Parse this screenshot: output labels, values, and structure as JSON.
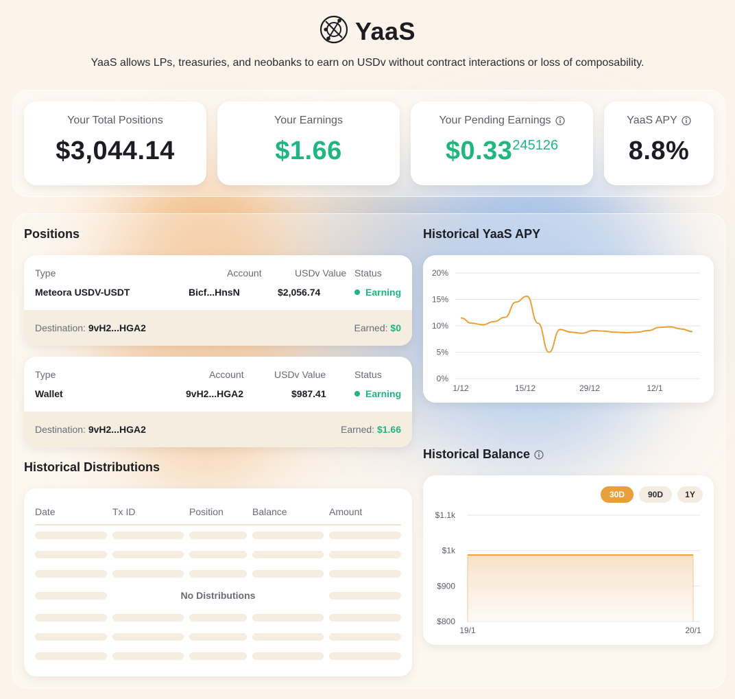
{
  "brand": {
    "title": "YaaS",
    "tagline": "YaaS allows LPs, treasuries, and neobanks to earn on USDv without contract interactions or loss of composability."
  },
  "stats": {
    "total_positions": {
      "label": "Your Total Positions",
      "value": "$3,044.14"
    },
    "earnings": {
      "label": "Your Earnings",
      "value": "$1.66"
    },
    "pending": {
      "label": "Your Pending Earnings",
      "value": "$0.33",
      "ticker": "245126"
    },
    "apy": {
      "label": "YaaS APY",
      "value": "8.8%"
    }
  },
  "positions": {
    "title": "Positions",
    "headers": {
      "type": "Type",
      "account": "Account",
      "usdv_value": "USDv Value",
      "status": "Status"
    },
    "destination_label": "Destination:",
    "earned_label": "Earned:",
    "items": [
      {
        "type": "Meteora USDV-USDT",
        "account": "Bicf...HnsN",
        "usdv_value": "$2,056.74",
        "status": "Earning",
        "destination": "9vH2...HGA2",
        "earned": "$0"
      },
      {
        "type": "Wallet",
        "account": "9vH2...HGA2",
        "usdv_value": "$987.41",
        "status": "Earning",
        "destination": "9vH2...HGA2",
        "earned": "$1.66"
      }
    ]
  },
  "distributions": {
    "title": "Historical Distributions",
    "headers": [
      "Date",
      "Tx ID",
      "Position",
      "Balance",
      "Amount"
    ],
    "empty_text": "No Distributions"
  },
  "apy_chart": {
    "title": "Historical YaaS APY",
    "chart_data": {
      "type": "line",
      "title": "Historical YaaS APY",
      "y_ticks": [
        "20%",
        "15%",
        "10%",
        "5%",
        "0%"
      ],
      "ylim": [
        0,
        20
      ],
      "x_ticks": [
        "1/12",
        "15/12",
        "29/12",
        "12/1"
      ],
      "series": [
        {
          "color": "#e9a03a",
          "values": [
            11.5,
            10.5,
            10.2,
            10.8,
            11.6,
            14.5,
            15.6,
            10.5,
            5.0,
            9.3,
            8.8,
            8.6,
            9.1,
            9.0,
            8.8,
            8.7,
            8.8,
            9.1,
            9.7,
            9.8,
            9.4,
            8.9
          ]
        }
      ],
      "grid": true
    }
  },
  "balance_chart": {
    "title": "Historical Balance",
    "ranges": [
      "30D",
      "90D",
      "1Y"
    ],
    "active_range": "30D",
    "chart_data": {
      "type": "area",
      "title": "Historical Balance",
      "y_ticks": [
        "$1.1k",
        "$1k",
        "$900",
        "$800"
      ],
      "ylim": [
        800,
        1100
      ],
      "x_ticks": [
        "19/1",
        "20/1"
      ],
      "series": [
        {
          "color": "#e9a03a",
          "values": [
            987.41,
            987.41
          ]
        }
      ],
      "grid": true
    }
  }
}
